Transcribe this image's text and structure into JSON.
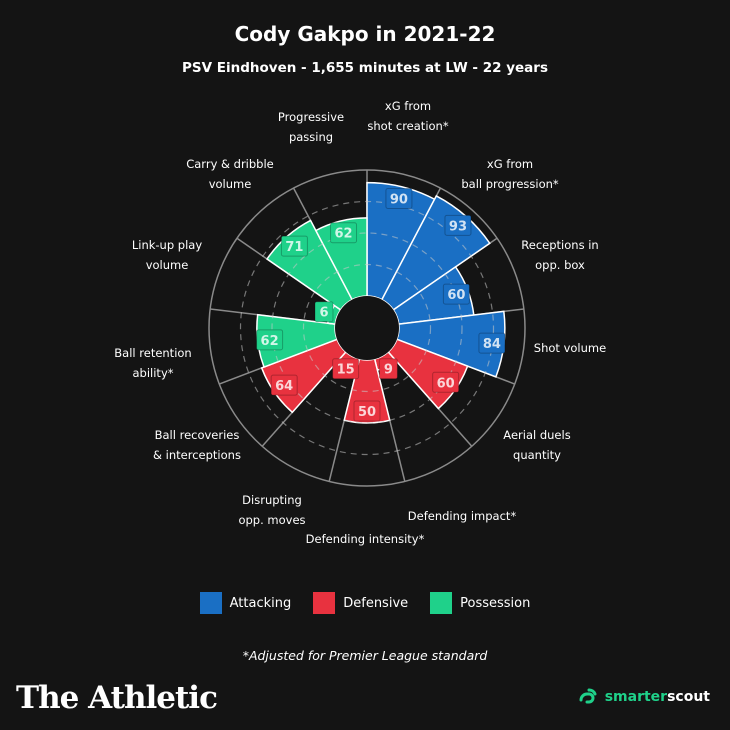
{
  "chart_data": {
    "type": "polar-bar",
    "title": "Cody Gakpo in 2021-22",
    "subtitle": "PSV Eindhoven - 1,655 minutes at LW - 22 years",
    "rlim": [
      0,
      100
    ],
    "categories": [
      {
        "label": [
          "xG from",
          "shot creation*"
        ],
        "value": 90,
        "group": "Attacking"
      },
      {
        "label": [
          "xG from",
          "ball progression*"
        ],
        "value": 93,
        "group": "Attacking"
      },
      {
        "label": [
          "Receptions in",
          "opp. box"
        ],
        "value": 60,
        "group": "Attacking"
      },
      {
        "label": [
          "Shot volume"
        ],
        "value": 84,
        "group": "Attacking"
      },
      {
        "label": [
          "Aerial duels",
          "quantity"
        ],
        "value": 60,
        "group": "Defensive"
      },
      {
        "label": [
          "Defending impact*"
        ],
        "value": 9,
        "group": "Defensive"
      },
      {
        "label": [
          "Defending intensity*"
        ],
        "value": 50,
        "group": "Defensive"
      },
      {
        "label": [
          "Disrupting",
          "opp. moves"
        ],
        "value": 15,
        "group": "Defensive"
      },
      {
        "label": [
          "Ball recoveries",
          "& interceptions"
        ],
        "value": 64,
        "group": "Defensive"
      },
      {
        "label": [
          "Ball retention",
          "ability*"
        ],
        "value": 62,
        "group": "Possession"
      },
      {
        "label": [
          "Link-up play",
          "volume"
        ],
        "value": 6,
        "group": "Possession"
      },
      {
        "label": [
          "Carry & dribble",
          "volume"
        ],
        "value": 71,
        "group": "Possession"
      },
      {
        "label": [
          "Progressive",
          "passing"
        ],
        "value": 62,
        "group": "Possession"
      }
    ],
    "legend": [
      {
        "name": "Attacking",
        "color": "#1a6fc4"
      },
      {
        "name": "Defensive",
        "color": "#e8323f"
      },
      {
        "name": "Possession",
        "color": "#1fd18a"
      }
    ],
    "legend_placement": "bottom",
    "grid": true
  },
  "footnote": "*Adjusted for Premier League standard",
  "branding": {
    "left": "The Athletic",
    "right_a": "smarter",
    "right_b": "scout"
  }
}
